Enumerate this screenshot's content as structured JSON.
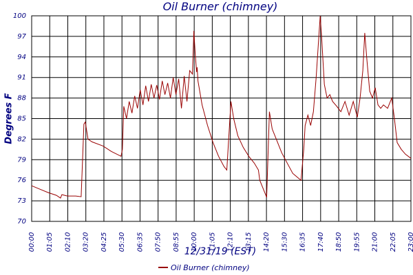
{
  "chart_data": {
    "type": "line",
    "title": "Oil Burner (chimney)",
    "xlabel": "12/31/19 (EST)",
    "ylabel": "Degrees F",
    "legend": [
      "Oil Burner (chimney)"
    ],
    "legend_position": "bottom",
    "grid": true,
    "line_color": "#990000",
    "text_color": "#000080",
    "x_range": [
      "00:00",
      "23:00"
    ],
    "y_ticks": [
      "100",
      "97",
      "94",
      "91",
      "88",
      "85",
      "82",
      "79",
      "76",
      "73",
      "70"
    ],
    "ylim": [
      70,
      100
    ],
    "x_ticks": [
      "00:00",
      "01:05",
      "02:10",
      "03:20",
      "04:25",
      "05:30",
      "06:35",
      "07:50",
      "08:55",
      "10:00",
      "11:05",
      "12:10",
      "13:15",
      "14:20",
      "15:30",
      "16:35",
      "17:40",
      "18:50",
      "19:55",
      "21:00",
      "22:05",
      "23:00"
    ],
    "series": [
      {
        "name": "Oil Burner (chimney)",
        "points": [
          [
            "00:00",
            75.2
          ],
          [
            "00:30",
            74.7
          ],
          [
            "01:00",
            74.2
          ],
          [
            "01:30",
            73.8
          ],
          [
            "01:45",
            73.4
          ],
          [
            "01:50",
            73.9
          ],
          [
            "02:10",
            73.7
          ],
          [
            "02:40",
            73.7
          ],
          [
            "03:00",
            73.6
          ],
          [
            "03:10",
            84.2
          ],
          [
            "03:15",
            84.5
          ],
          [
            "03:25",
            82.0
          ],
          [
            "03:40",
            81.6
          ],
          [
            "04:20",
            81.0
          ],
          [
            "04:50",
            80.2
          ],
          [
            "05:25",
            79.5
          ],
          [
            "05:30",
            80.5
          ],
          [
            "05:35",
            86.8
          ],
          [
            "05:45",
            85.0
          ],
          [
            "05:55",
            87.5
          ],
          [
            "06:05",
            85.8
          ],
          [
            "06:15",
            88.3
          ],
          [
            "06:25",
            86.5
          ],
          [
            "06:35",
            89.2
          ],
          [
            "06:45",
            87.0
          ],
          [
            "06:55",
            89.8
          ],
          [
            "07:05",
            87.5
          ],
          [
            "07:15",
            90.0
          ],
          [
            "07:25",
            88.0
          ],
          [
            "07:35",
            89.9
          ],
          [
            "07:45",
            87.8
          ],
          [
            "07:55",
            90.5
          ],
          [
            "08:05",
            88.5
          ],
          [
            "08:15",
            90.2
          ],
          [
            "08:25",
            88.0
          ],
          [
            "08:35",
            91.0
          ],
          [
            "08:45",
            88.5
          ],
          [
            "08:55",
            90.8
          ],
          [
            "09:05",
            86.5
          ],
          [
            "09:15",
            91.2
          ],
          [
            "09:25",
            87.5
          ],
          [
            "09:35",
            92.0
          ],
          [
            "09:45",
            91.5
          ],
          [
            "09:50",
            97.8
          ],
          [
            "09:55",
            94.5
          ],
          [
            "10:00",
            91.8
          ],
          [
            "10:02",
            92.5
          ],
          [
            "10:05",
            90.5
          ],
          [
            "10:20",
            87.0
          ],
          [
            "10:40",
            84.0
          ],
          [
            "11:00",
            81.5
          ],
          [
            "11:20",
            79.5
          ],
          [
            "11:40",
            78.0
          ],
          [
            "11:50",
            77.5
          ],
          [
            "12:05",
            87.5
          ],
          [
            "12:15",
            85.0
          ],
          [
            "12:30",
            82.5
          ],
          [
            "12:50",
            80.8
          ],
          [
            "13:10",
            79.5
          ],
          [
            "13:30",
            78.5
          ],
          [
            "13:45",
            77.5
          ],
          [
            "13:50",
            76.0
          ],
          [
            "14:05",
            74.5
          ],
          [
            "14:15",
            73.5
          ],
          [
            "14:25",
            86.0
          ],
          [
            "14:35",
            83.5
          ],
          [
            "14:50",
            82.0
          ],
          [
            "15:10",
            80.0
          ],
          [
            "15:30",
            78.5
          ],
          [
            "15:50",
            77.0
          ],
          [
            "16:05",
            76.5
          ],
          [
            "16:20",
            76.0
          ],
          [
            "16:30",
            80.5
          ],
          [
            "16:35",
            84.0
          ],
          [
            "16:45",
            85.5
          ],
          [
            "16:55",
            84.0
          ],
          [
            "17:05",
            86.0
          ],
          [
            "17:15",
            91.0
          ],
          [
            "17:25",
            97.0
          ],
          [
            "17:30",
            100.0
          ],
          [
            "17:35",
            97.0
          ],
          [
            "17:45",
            90.0
          ],
          [
            "17:55",
            88.0
          ],
          [
            "18:05",
            88.5
          ],
          [
            "18:15",
            87.5
          ],
          [
            "18:30",
            86.8
          ],
          [
            "18:45",
            86.0
          ],
          [
            "19:00",
            87.5
          ],
          [
            "19:15",
            85.5
          ],
          [
            "19:30",
            87.5
          ],
          [
            "19:45",
            85.2
          ],
          [
            "19:55",
            88.0
          ],
          [
            "20:05",
            92.0
          ],
          [
            "20:12",
            97.5
          ],
          [
            "20:20",
            93.5
          ],
          [
            "20:30",
            89.0
          ],
          [
            "20:40",
            88.0
          ],
          [
            "20:50",
            89.5
          ],
          [
            "21:00",
            87.0
          ],
          [
            "21:10",
            86.5
          ],
          [
            "21:20",
            87.0
          ],
          [
            "21:35",
            86.5
          ],
          [
            "21:50",
            88.0
          ],
          [
            "22:00",
            85.0
          ],
          [
            "22:10",
            81.5
          ],
          [
            "22:25",
            80.5
          ],
          [
            "22:40",
            79.8
          ],
          [
            "23:00",
            79.2
          ]
        ]
      }
    ]
  }
}
